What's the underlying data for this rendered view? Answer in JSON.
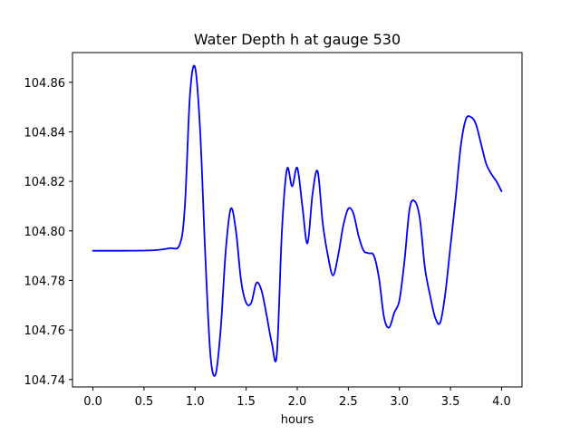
{
  "chart_data": {
    "type": "line",
    "title": "Water Depth h at gauge 530",
    "xlabel": "hours",
    "ylabel": "",
    "xlim": [
      -0.2,
      4.2
    ],
    "ylim": [
      104.737,
      104.872
    ],
    "xticks": [
      0.0,
      0.5,
      1.0,
      1.5,
      2.0,
      2.5,
      3.0,
      3.5,
      4.0
    ],
    "xtick_labels": [
      "0.0",
      "0.5",
      "1.0",
      "1.5",
      "2.0",
      "2.5",
      "3.0",
      "3.5",
      "4.0"
    ],
    "yticks": [
      104.74,
      104.76,
      104.78,
      104.8,
      104.82,
      104.84,
      104.86
    ],
    "ytick_labels": [
      "104.74",
      "104.76",
      "104.78",
      "104.80",
      "104.82",
      "104.84",
      "104.86"
    ],
    "grid": false,
    "legend": "none",
    "series": [
      {
        "color": "#0000ff",
        "x": [
          0.0,
          0.3,
          0.6,
          0.75,
          0.85,
          0.9,
          0.95,
          1.0,
          1.05,
          1.1,
          1.15,
          1.2,
          1.25,
          1.3,
          1.35,
          1.4,
          1.45,
          1.5,
          1.55,
          1.6,
          1.65,
          1.7,
          1.75,
          1.8,
          1.85,
          1.9,
          1.95,
          2.0,
          2.05,
          2.1,
          2.15,
          2.2,
          2.25,
          2.3,
          2.35,
          2.4,
          2.45,
          2.5,
          2.55,
          2.6,
          2.65,
          2.7,
          2.75,
          2.8,
          2.85,
          2.9,
          2.95,
          3.0,
          3.05,
          3.1,
          3.15,
          3.2,
          3.25,
          3.3,
          3.35,
          3.4,
          3.45,
          3.5,
          3.55,
          3.6,
          3.65,
          3.7,
          3.75,
          3.8,
          3.85,
          3.9,
          3.95,
          4.0
        ],
        "y": [
          104.792,
          104.792,
          104.7922,
          104.793,
          104.7945,
          104.81,
          104.855,
          104.866,
          104.84,
          104.79,
          104.75,
          104.742,
          104.76,
          104.792,
          104.809,
          104.8,
          104.78,
          104.771,
          104.771,
          104.779,
          104.776,
          104.766,
          104.755,
          104.75,
          104.8,
          104.825,
          104.818,
          104.8255,
          104.81,
          104.795,
          104.815,
          104.824,
          104.803,
          104.79,
          104.782,
          104.79,
          104.802,
          104.809,
          104.807,
          104.798,
          104.792,
          104.791,
          104.79,
          104.781,
          104.765,
          104.761,
          104.767,
          104.772,
          104.788,
          104.809,
          104.812,
          104.805,
          104.785,
          104.774,
          104.765,
          104.763,
          104.775,
          104.794,
          104.813,
          104.834,
          104.845,
          104.846,
          104.843,
          104.835,
          104.827,
          104.823,
          104.82,
          104.816
        ]
      }
    ]
  }
}
